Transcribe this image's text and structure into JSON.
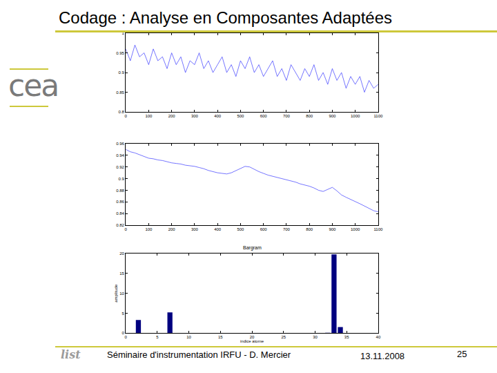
{
  "slide": {
    "title": "Codage : Analyse en Composantes Adaptées",
    "logos": [
      "cea",
      "list"
    ],
    "footer": {
      "text": "Séminaire d'instrumentation IRFU - D. Mercier",
      "date": "13.11.2008",
      "page": "25"
    }
  },
  "chart_data": [
    {
      "type": "line",
      "color": "#3a3aff",
      "grid": false,
      "x": [
        0,
        20,
        40,
        60,
        80,
        100,
        120,
        140,
        160,
        180,
        200,
        220,
        240,
        260,
        280,
        300,
        320,
        340,
        360,
        380,
        400,
        420,
        440,
        460,
        480,
        500,
        520,
        540,
        560,
        580,
        600,
        620,
        640,
        660,
        680,
        700,
        720,
        740,
        760,
        780,
        800,
        820,
        840,
        860,
        880,
        900,
        920,
        940,
        960,
        980,
        1000,
        1020,
        1040,
        1060,
        1080,
        1100
      ],
      "values": [
        0.96,
        0.93,
        0.97,
        0.94,
        0.95,
        0.92,
        0.96,
        0.93,
        0.94,
        0.91,
        0.95,
        0.92,
        0.94,
        0.9,
        0.93,
        0.92,
        0.95,
        0.91,
        0.93,
        0.9,
        0.92,
        0.94,
        0.9,
        0.92,
        0.89,
        0.93,
        0.91,
        0.94,
        0.9,
        0.92,
        0.89,
        0.91,
        0.93,
        0.89,
        0.91,
        0.88,
        0.92,
        0.9,
        0.88,
        0.91,
        0.89,
        0.92,
        0.88,
        0.9,
        0.87,
        0.91,
        0.88,
        0.9,
        0.86,
        0.89,
        0.87,
        0.89,
        0.85,
        0.88,
        0.86,
        0.87
      ],
      "xlim": [
        0,
        1100
      ],
      "xticks": [
        0,
        100,
        200,
        300,
        400,
        500,
        600,
        700,
        800,
        900,
        1000,
        1100
      ],
      "ylim": [
        0.8,
        1
      ],
      "yticks": [
        0.8,
        0.85,
        0.9,
        0.95,
        1
      ]
    },
    {
      "type": "line",
      "color": "#3a3aff",
      "grid": false,
      "x": [
        0,
        20,
        40,
        60,
        80,
        100,
        120,
        140,
        160,
        180,
        200,
        220,
        240,
        260,
        280,
        300,
        320,
        340,
        360,
        380,
        400,
        420,
        440,
        460,
        480,
        500,
        520,
        540,
        560,
        580,
        600,
        620,
        640,
        660,
        680,
        700,
        720,
        740,
        760,
        780,
        800,
        820,
        840,
        860,
        880,
        900,
        920,
        940,
        960,
        980,
        1000,
        1020,
        1040,
        1060,
        1080,
        1100
      ],
      "values": [
        0.95,
        0.946,
        0.944,
        0.941,
        0.938,
        0.935,
        0.934,
        0.932,
        0.931,
        0.929,
        0.927,
        0.926,
        0.925,
        0.923,
        0.922,
        0.921,
        0.919,
        0.917,
        0.914,
        0.912,
        0.91,
        0.909,
        0.908,
        0.91,
        0.914,
        0.918,
        0.921,
        0.92,
        0.916,
        0.912,
        0.909,
        0.906,
        0.904,
        0.902,
        0.9,
        0.898,
        0.896,
        0.894,
        0.891,
        0.889,
        0.887,
        0.884,
        0.88,
        0.878,
        0.882,
        0.885,
        0.879,
        0.872,
        0.868,
        0.864,
        0.86,
        0.857,
        0.853,
        0.849,
        0.845,
        0.843
      ],
      "xlim": [
        0,
        1100
      ],
      "xticks": [
        0,
        100,
        200,
        300,
        400,
        500,
        600,
        700,
        800,
        900,
        1000,
        1100
      ],
      "ylim": [
        0.82,
        0.96
      ],
      "yticks": [
        0.82,
        0.84,
        0.86,
        0.88,
        0.9,
        0.92,
        0.94,
        0.96
      ]
    },
    {
      "type": "bar",
      "title": "Bargram",
      "x_label": "indice atome",
      "y_label": "amplitude",
      "color": "#00007f",
      "grid": false,
      "x": [
        2,
        7,
        32,
        33,
        34
      ],
      "values": [
        3.3,
        5.2,
        0.1,
        19.8,
        1.5
      ],
      "xlim": [
        0,
        40
      ],
      "xticks": [
        0,
        5,
        10,
        15,
        20,
        25,
        30,
        35,
        40
      ],
      "ylim": [
        0,
        20
      ],
      "yticks": [
        0,
        5,
        10,
        15,
        20
      ]
    }
  ]
}
